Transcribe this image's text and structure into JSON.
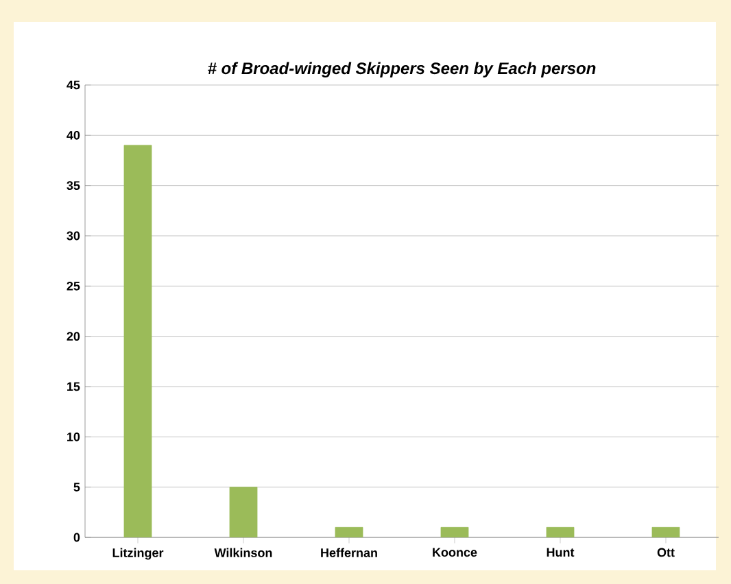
{
  "chart_data": {
    "type": "bar",
    "title": "*# of Broad-winged Skippers Seen by Each person*",
    "categories": [
      "Litzinger",
      "Wilkinson",
      "Heffernan",
      "Koonce",
      "Hunt",
      "Ott"
    ],
    "values": [
      39,
      5,
      1,
      1,
      1,
      1
    ],
    "color": "#9bbb59",
    "ylim": [
      0,
      45
    ],
    "yticks": [
      0,
      5,
      10,
      15,
      20,
      25,
      30,
      35,
      40,
      45
    ],
    "grid": "y"
  }
}
